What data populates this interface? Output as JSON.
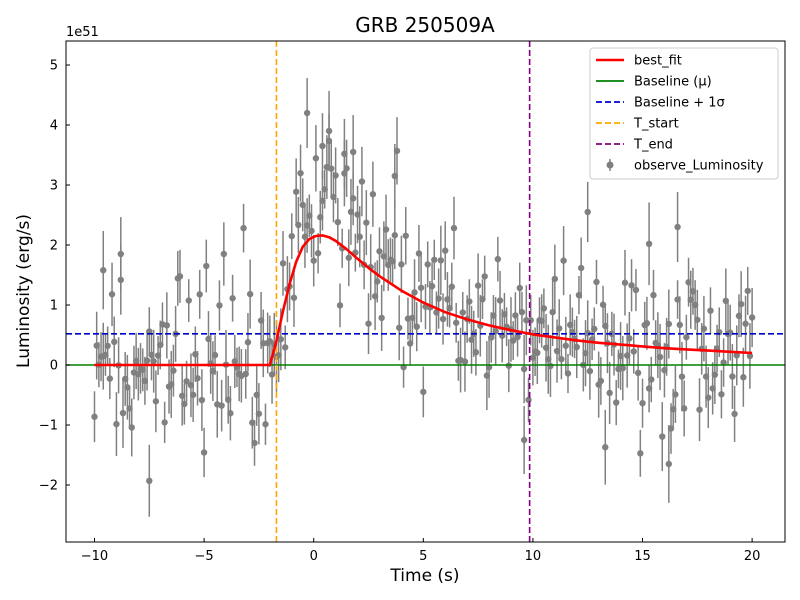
{
  "chart_data": {
    "type": "scatter",
    "title": "GRB 250509A",
    "xlabel": "Time (s)",
    "ylabel": "Luminosity (erg/s)",
    "y_scale_label": "1e51",
    "xlim": [
      -11.3,
      21.5
    ],
    "ylim": [
      -2.95,
      5.4
    ],
    "xticks": [
      -10,
      -5,
      0,
      5,
      10,
      15,
      20
    ],
    "yticks": [
      -2,
      -1,
      0,
      1,
      2,
      3,
      4,
      5
    ],
    "grid": false,
    "legend_position": "top-right",
    "colors": {
      "best_fit": "#ff0000",
      "baseline": "#008000",
      "baseline_sigma": "#0000cc",
      "t_start": "#ffa500",
      "t_end": "#800080",
      "observed": "#808080"
    },
    "series": [
      {
        "name": "observe_Luminosity",
        "kind": "errorbar-scatter",
        "note": "dense noisy time series, 0.1 s bins",
        "x_range": [
          -10,
          20
        ],
        "bin_width": 0.1,
        "pre_burst_level": 0.0,
        "pre_burst_scatter": 0.75,
        "peak_time": 0.5,
        "peak_value": 2.6,
        "typical_error": 0.45,
        "highlight_points": [
          {
            "x": -7.5,
            "y": -1.93
          },
          {
            "x": -8.8,
            "y": 1.85
          },
          {
            "x": -9.6,
            "y": 1.58
          },
          {
            "x": -0.3,
            "y": 4.2
          },
          {
            "x": 0.7,
            "y": 3.9
          },
          {
            "x": 0.4,
            "y": 3.65
          },
          {
            "x": 1.8,
            "y": 3.55
          },
          {
            "x": 1.4,
            "y": 3.52
          },
          {
            "x": 3.7,
            "y": 3.15
          },
          {
            "x": 12.5,
            "y": 2.55
          },
          {
            "x": 16.6,
            "y": 2.3
          },
          {
            "x": 15.3,
            "y": 2.02
          },
          {
            "x": 16.2,
            "y": -1.65
          },
          {
            "x": 9.6,
            "y": -1.25
          },
          {
            "x": 13.3,
            "y": -1.37
          }
        ]
      },
      {
        "name": "best_fit",
        "kind": "line",
        "x": [
          -2.0,
          -1.7,
          -1.4,
          -1.1,
          -0.8,
          -0.5,
          -0.2,
          0.1,
          0.4,
          0.7,
          1.0,
          1.5,
          2.0,
          2.5,
          3.0,
          4.0,
          5.0,
          6.0,
          7.0,
          8.0,
          9.0,
          10.0,
          11.0,
          12.0,
          13.0,
          14.0,
          15.0,
          16.0,
          17.0,
          18.0,
          19.0,
          20.0
        ],
        "y": [
          0.0,
          0.4,
          0.9,
          1.35,
          1.72,
          1.97,
          2.1,
          2.15,
          2.16,
          2.13,
          2.07,
          1.93,
          1.77,
          1.62,
          1.48,
          1.24,
          1.04,
          0.88,
          0.76,
          0.66,
          0.58,
          0.51,
          0.46,
          0.41,
          0.37,
          0.34,
          0.31,
          0.28,
          0.26,
          0.24,
          0.22,
          0.2
        ],
        "pre_burst_y": 0.0,
        "pre_burst_x": [
          -10,
          -2.0
        ]
      },
      {
        "name": "Baseline (μ)",
        "kind": "hline",
        "y": 0.0
      },
      {
        "name": "Baseline + 1σ",
        "kind": "hline",
        "y": 0.52
      },
      {
        "name": "T_start",
        "kind": "vline",
        "x": -1.7
      },
      {
        "name": "T_end",
        "kind": "vline",
        "x": 9.85
      }
    ],
    "legend": [
      {
        "label": "best_fit",
        "style": "line",
        "color_key": "best_fit"
      },
      {
        "label": "Baseline (μ)",
        "style": "line",
        "color_key": "baseline"
      },
      {
        "label": "Baseline + 1σ",
        "style": "dashed",
        "color_key": "baseline_sigma"
      },
      {
        "label": "T_start",
        "style": "dashed",
        "color_key": "t_start"
      },
      {
        "label": "T_end",
        "style": "dashed",
        "color_key": "t_end"
      },
      {
        "label": "observe_Luminosity",
        "style": "errorbar",
        "color_key": "observed"
      }
    ]
  }
}
